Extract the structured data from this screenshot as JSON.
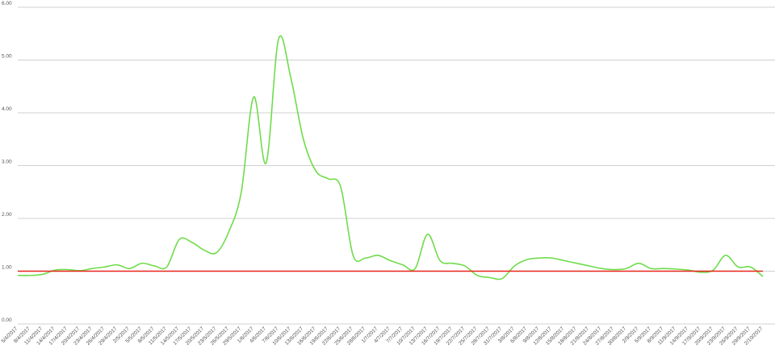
{
  "chart_data": {
    "type": "line",
    "categories": [
      "5/4/2017",
      "8/4/2017",
      "11/4/2017",
      "14/4/2017",
      "17/4/2017",
      "20/4/2017",
      "23/4/2017",
      "26/4/2017",
      "29/4/2017",
      "2/5/2017",
      "5/5/2017",
      "8/5/2017",
      "11/5/2017",
      "14/5/2017",
      "17/5/2017",
      "20/5/2017",
      "23/5/2017",
      "26/5/2017",
      "29/5/2017",
      "1/6/2017",
      "4/6/2017",
      "7/6/2017",
      "10/6/2017",
      "13/6/2017",
      "16/6/2017",
      "19/6/2017",
      "22/6/2017",
      "25/6/2017",
      "28/6/2017",
      "1/7/2017",
      "4/7/2017",
      "7/7/2017",
      "10/7/2017",
      "13/7/2017",
      "16/7/2017",
      "19/7/2017",
      "22/7/2017",
      "25/7/2017",
      "28/7/2017",
      "31/7/2017",
      "3/8/2017",
      "6/8/2017",
      "9/8/2017",
      "12/8/2017",
      "15/8/2017",
      "18/8/2017",
      "21/8/2017",
      "24/8/2017",
      "27/8/2017",
      "30/8/2017",
      "2/9/2017",
      "5/9/2017",
      "8/9/2017",
      "11/9/2017",
      "14/9/2017",
      "17/9/2017",
      "20/9/2017",
      "23/9/2017",
      "26/9/2017",
      "29/9/2017",
      "2/10/2017"
    ],
    "series": [
      {
        "color": "#6fdc4a",
        "values": [
          0.92,
          0.92,
          0.94,
          1.02,
          1.03,
          1.01,
          1.05,
          1.08,
          1.12,
          1.05,
          1.15,
          1.1,
          1.08,
          1.6,
          1.55,
          1.4,
          1.35,
          1.75,
          2.5,
          4.3,
          3.05,
          5.4,
          4.65,
          3.5,
          2.9,
          2.75,
          2.6,
          1.3,
          1.25,
          1.3,
          1.2,
          1.12,
          1.05,
          1.7,
          1.2,
          1.15,
          1.1,
          0.92,
          0.88,
          0.86,
          1.1,
          1.22,
          1.25,
          1.25,
          1.2,
          1.15,
          1.1,
          1.05,
          1.03,
          1.05,
          1.15,
          1.05,
          1.05,
          1.04,
          1.02,
          0.98,
          1.02,
          1.3,
          1.08,
          1.08,
          0.9
        ]
      }
    ],
    "reference_line": {
      "value": 1,
      "color": "#e8231a"
    },
    "ylim": [
      0,
      6
    ],
    "yticks": [
      {
        "value": 0,
        "label": "0.00"
      },
      {
        "value": 1,
        "label": "1.00"
      },
      {
        "value": 2,
        "label": "2.00"
      },
      {
        "value": 3,
        "label": "3.00"
      },
      {
        "value": 4,
        "label": "4.00"
      },
      {
        "value": 5,
        "label": "5.00"
      },
      {
        "value": 6,
        "label": "6.00"
      }
    ],
    "grid": true
  }
}
